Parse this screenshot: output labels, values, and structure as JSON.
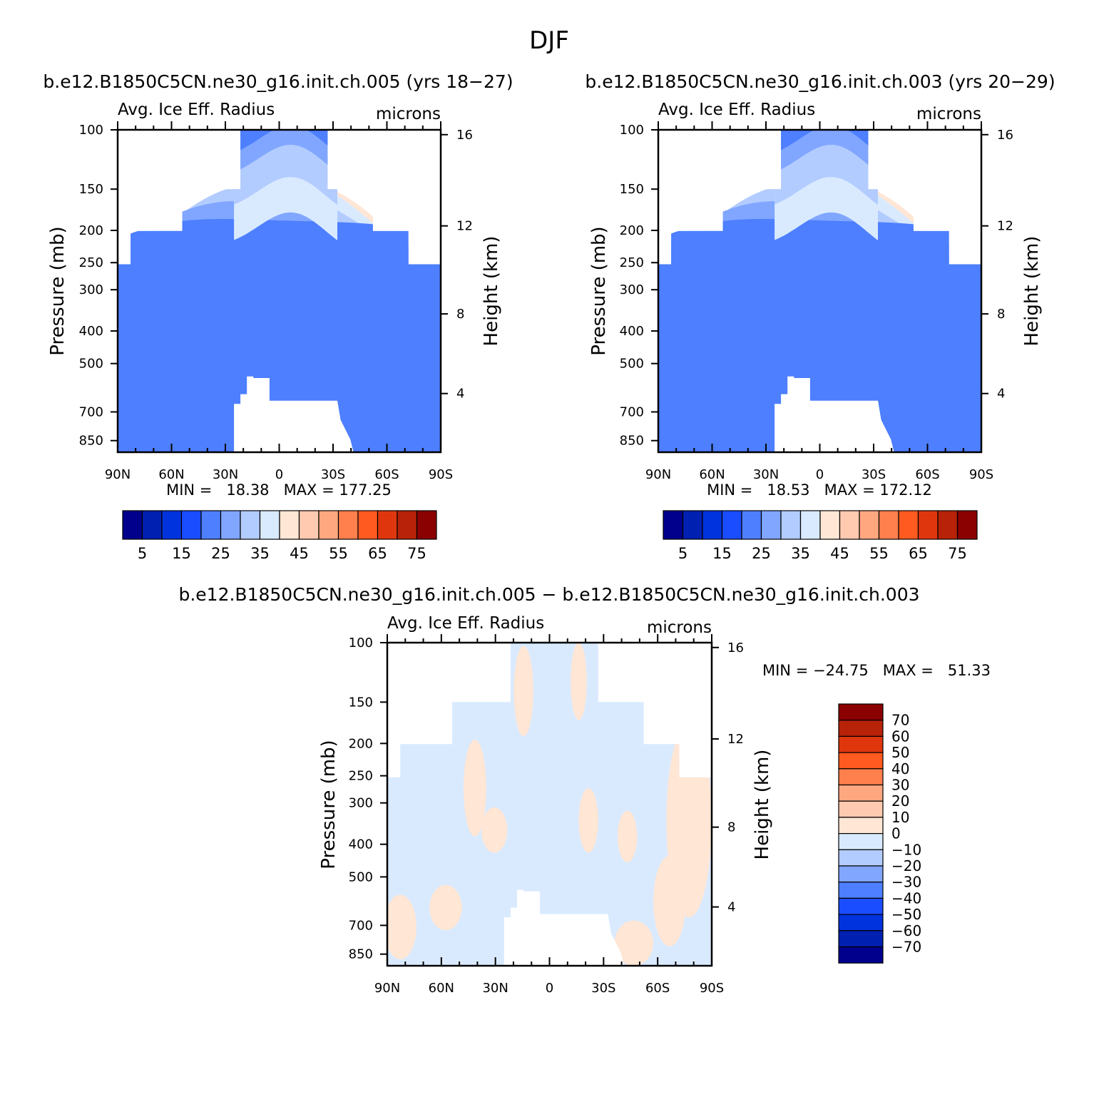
{
  "figure": {
    "title": "DJF"
  },
  "colors": {
    "abs_scale": [
      "#00008c",
      "#0020b2",
      "#0033dd",
      "#1a4dff",
      "#4d7fff",
      "#80a6ff",
      "#b3ccff",
      "#d9eaff",
      "#ffe6d5",
      "#ffcab0",
      "#ffa880",
      "#ff7f4d",
      "#ff5a20",
      "#e0360e",
      "#b82208",
      "#8b0000"
    ],
    "missing": "#ffffff"
  },
  "chart_data": [
    {
      "type": "heatmap",
      "panel_title": "b.e12.B1850C5CN.ne30_g16.init.ch.005 (yrs 18−27)",
      "left_label": "Avg. Ice Eff. Radius",
      "right_label": "microns",
      "ylabel": "Pressure (mb)",
      "y2label": "Height (km)",
      "x_ticks": [
        "90N",
        "60N",
        "30N",
        "0",
        "30S",
        "60S",
        "90S"
      ],
      "y_ticks": [
        "100",
        "150",
        "200",
        "250",
        "300",
        "400",
        "500",
        "700",
        "850"
      ],
      "y2_ticks": [
        "16",
        "12",
        "8",
        "4"
      ],
      "stats": "MIN =   18.38   MAX = 177.25",
      "min": 18.38,
      "max": 177.25,
      "colorbar_labels": [
        "5",
        "15",
        "25",
        "35",
        "45",
        "55",
        "65",
        "75"
      ]
    },
    {
      "type": "heatmap",
      "panel_title": "b.e12.B1850C5CN.ne30_g16.init.ch.003 (yrs 20−29)",
      "left_label": "Avg. Ice Eff. Radius",
      "right_label": "microns",
      "ylabel": "Pressure (mb)",
      "y2label": "Height (km)",
      "x_ticks": [
        "90N",
        "60N",
        "30N",
        "0",
        "30S",
        "60S",
        "90S"
      ],
      "y_ticks": [
        "100",
        "150",
        "200",
        "250",
        "300",
        "400",
        "500",
        "700",
        "850"
      ],
      "y2_ticks": [
        "16",
        "12",
        "8",
        "4"
      ],
      "stats": "MIN =   18.53   MAX = 172.12",
      "min": 18.53,
      "max": 172.12,
      "colorbar_labels": [
        "5",
        "15",
        "25",
        "35",
        "45",
        "55",
        "65",
        "75"
      ]
    },
    {
      "type": "heatmap",
      "panel_title": "b.e12.B1850C5CN.ne30_g16.init.ch.005 − b.e12.B1850C5CN.ne30_g16.init.ch.003",
      "left_label": "Avg. Ice Eff. Radius",
      "right_label": "microns",
      "ylabel": "Pressure (mb)",
      "y2label": "Height (km)",
      "x_ticks": [
        "90N",
        "60N",
        "30N",
        "0",
        "30S",
        "60S",
        "90S"
      ],
      "y_ticks": [
        "100",
        "150",
        "200",
        "250",
        "300",
        "400",
        "500",
        "700",
        "850"
      ],
      "y2_ticks": [
        "16",
        "12",
        "8",
        "4"
      ],
      "stats": "MIN = −24.75   MAX =   51.33",
      "min": -24.75,
      "max": 51.33,
      "colorbar_labels": [
        "70",
        "60",
        "50",
        "40",
        "30",
        "20",
        "10",
        "0",
        "−10",
        "−20",
        "−30",
        "−40",
        "−50",
        "−60",
        "−70"
      ]
    }
  ]
}
